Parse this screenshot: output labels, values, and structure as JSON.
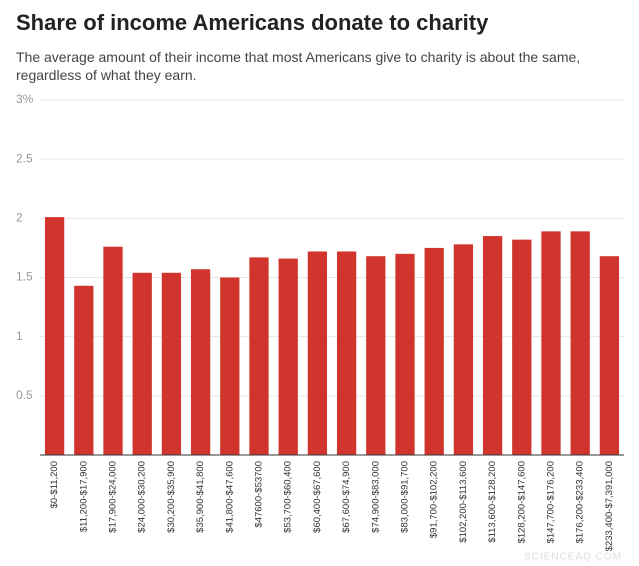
{
  "chart_data": {
    "type": "bar",
    "title": "Share of income Americans donate to charity",
    "subtitle": "The average amount of their income that most Americans give to charity is about the same, regardless of what they earn.",
    "categories": [
      "$0-$11,200",
      "$11,200-$17,900",
      "$17,900-$24,000",
      "$24,000-$30,200",
      "$30,200-$35,900",
      "$35,900-$41,800",
      "$41,800-$47,600",
      "$47600-$53700",
      "$53,700-$60,400",
      "$60,400-$67,600",
      "$67,600-$74,900",
      "$74,900-$83,000",
      "$83,000-$91,700",
      "$91,700-$102,200",
      "$102,200-$113,600",
      "$113,600-$128,200",
      "$128,200-$147,600",
      "$147,700-$176,200",
      "$176,200-$233,400",
      "$233,400-$7,391,000"
    ],
    "values": [
      2.01,
      1.43,
      1.76,
      1.54,
      1.54,
      1.57,
      1.5,
      1.67,
      1.66,
      1.72,
      1.72,
      1.68,
      1.7,
      1.75,
      1.78,
      1.85,
      1.82,
      1.89,
      1.89,
      1.68
    ],
    "color": "#d0342c",
    "ylim": [
      0,
      3
    ],
    "yticks": [
      0.5,
      1,
      1.5,
      2,
      2.5,
      {
        "value": 3,
        "label": "3%"
      }
    ],
    "grid": true,
    "watermark": "SCIENCEAQ.COM"
  }
}
